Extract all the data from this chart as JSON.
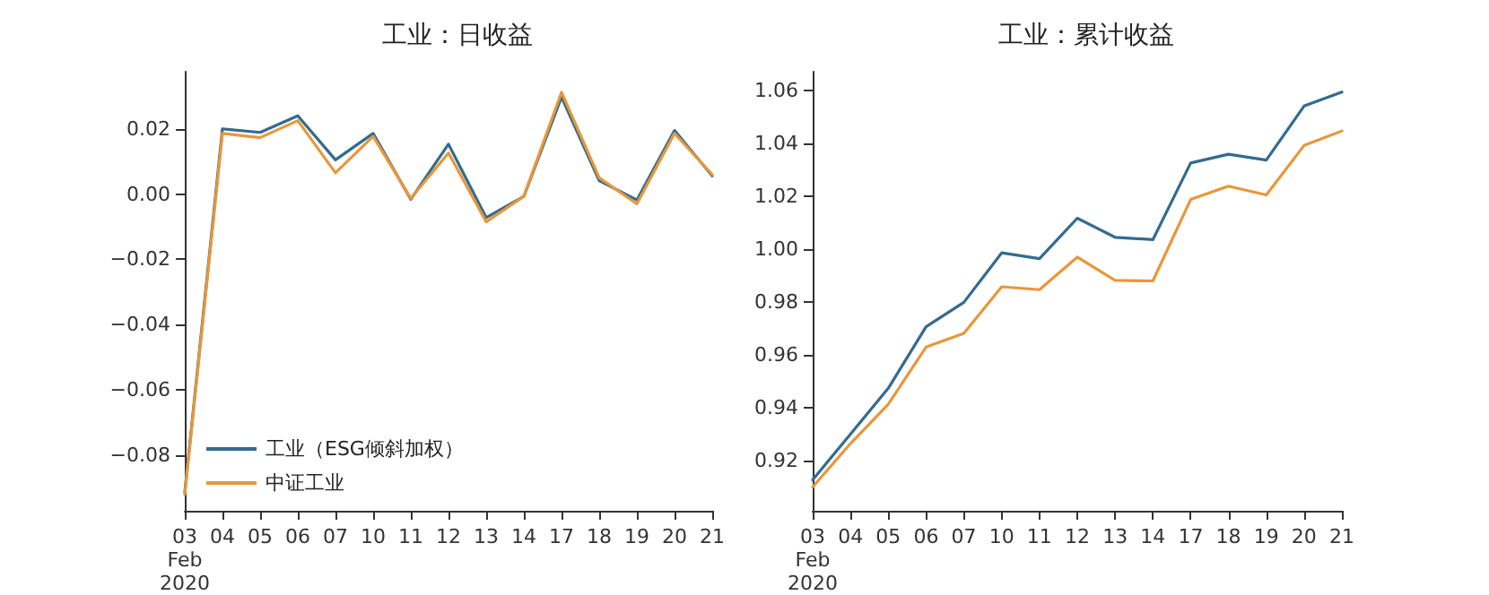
{
  "chart_data": [
    {
      "type": "line",
      "title": "工业：日收益",
      "categories": [
        "03\nFeb\n2020",
        "04",
        "05",
        "06",
        "07",
        "10",
        "11",
        "12",
        "13",
        "14",
        "17",
        "18",
        "19",
        "20",
        "21"
      ],
      "series": [
        {
          "name": "工业（ESG倾斜加权）",
          "color": "#336b8f",
          "values": [
            -0.0913,
            0.02,
            0.0189,
            0.024,
            0.0105,
            0.0186,
            -0.0016,
            0.0153,
            -0.0072,
            -0.0007,
            0.0297,
            0.0041,
            -0.0018,
            0.0195,
            0.0056
          ]
        },
        {
          "name": "中证工业",
          "color": "#e8973a",
          "values": [
            -0.092,
            0.0186,
            0.0173,
            0.0225,
            0.0065,
            0.0177,
            -0.0013,
            0.0126,
            -0.0085,
            -0.0007,
            0.0312,
            0.005,
            -0.003,
            0.0186,
            0.006
          ]
        }
      ],
      "ylim": [
        -0.097,
        0.0375
      ],
      "yticks": [
        {
          "value": -0.08,
          "label": "−0.08"
        },
        {
          "value": -0.06,
          "label": "−0.06"
        },
        {
          "value": -0.04,
          "label": "−0.04"
        },
        {
          "value": -0.02,
          "label": "−0.02"
        },
        {
          "value": 0,
          "label": "0.00"
        },
        0.02
      ],
      "grid": false,
      "legend": "bottom left",
      "marker": "none"
    },
    {
      "type": "line",
      "title": "工业：累计收益",
      "categories": [
        "03\nFeb\n2020",
        "04",
        "05",
        "06",
        "07",
        "10",
        "11",
        "12",
        "13",
        "14",
        "17",
        "18",
        "19",
        "20",
        "21"
      ],
      "series": [
        {
          "color": "#336b8f",
          "values": [
            0.9127,
            0.93,
            0.9473,
            0.9706,
            0.9798,
            0.9985,
            0.9963,
            1.0116,
            1.0044,
            1.0035,
            1.0325,
            1.0358,
            1.0336,
            1.054,
            1.0593
          ]
        },
        {
          "color": "#e8973a",
          "values": [
            0.91,
            0.9264,
            0.9413,
            0.9629,
            0.9681,
            0.9857,
            0.9846,
            0.9969,
            0.9881,
            0.9879,
            1.0187,
            1.0237,
            1.0204,
            1.0391,
            1.0446
          ]
        }
      ],
      "ylim": [
        0.901,
        1.067
      ],
      "yticks": [
        0.92,
        0.94,
        0.96,
        0.98,
        {
          "value": 1,
          "label": "1.00"
        },
        1.02,
        1.04,
        1.06
      ],
      "grid": false,
      "legend": false,
      "marker": "none"
    }
  ]
}
